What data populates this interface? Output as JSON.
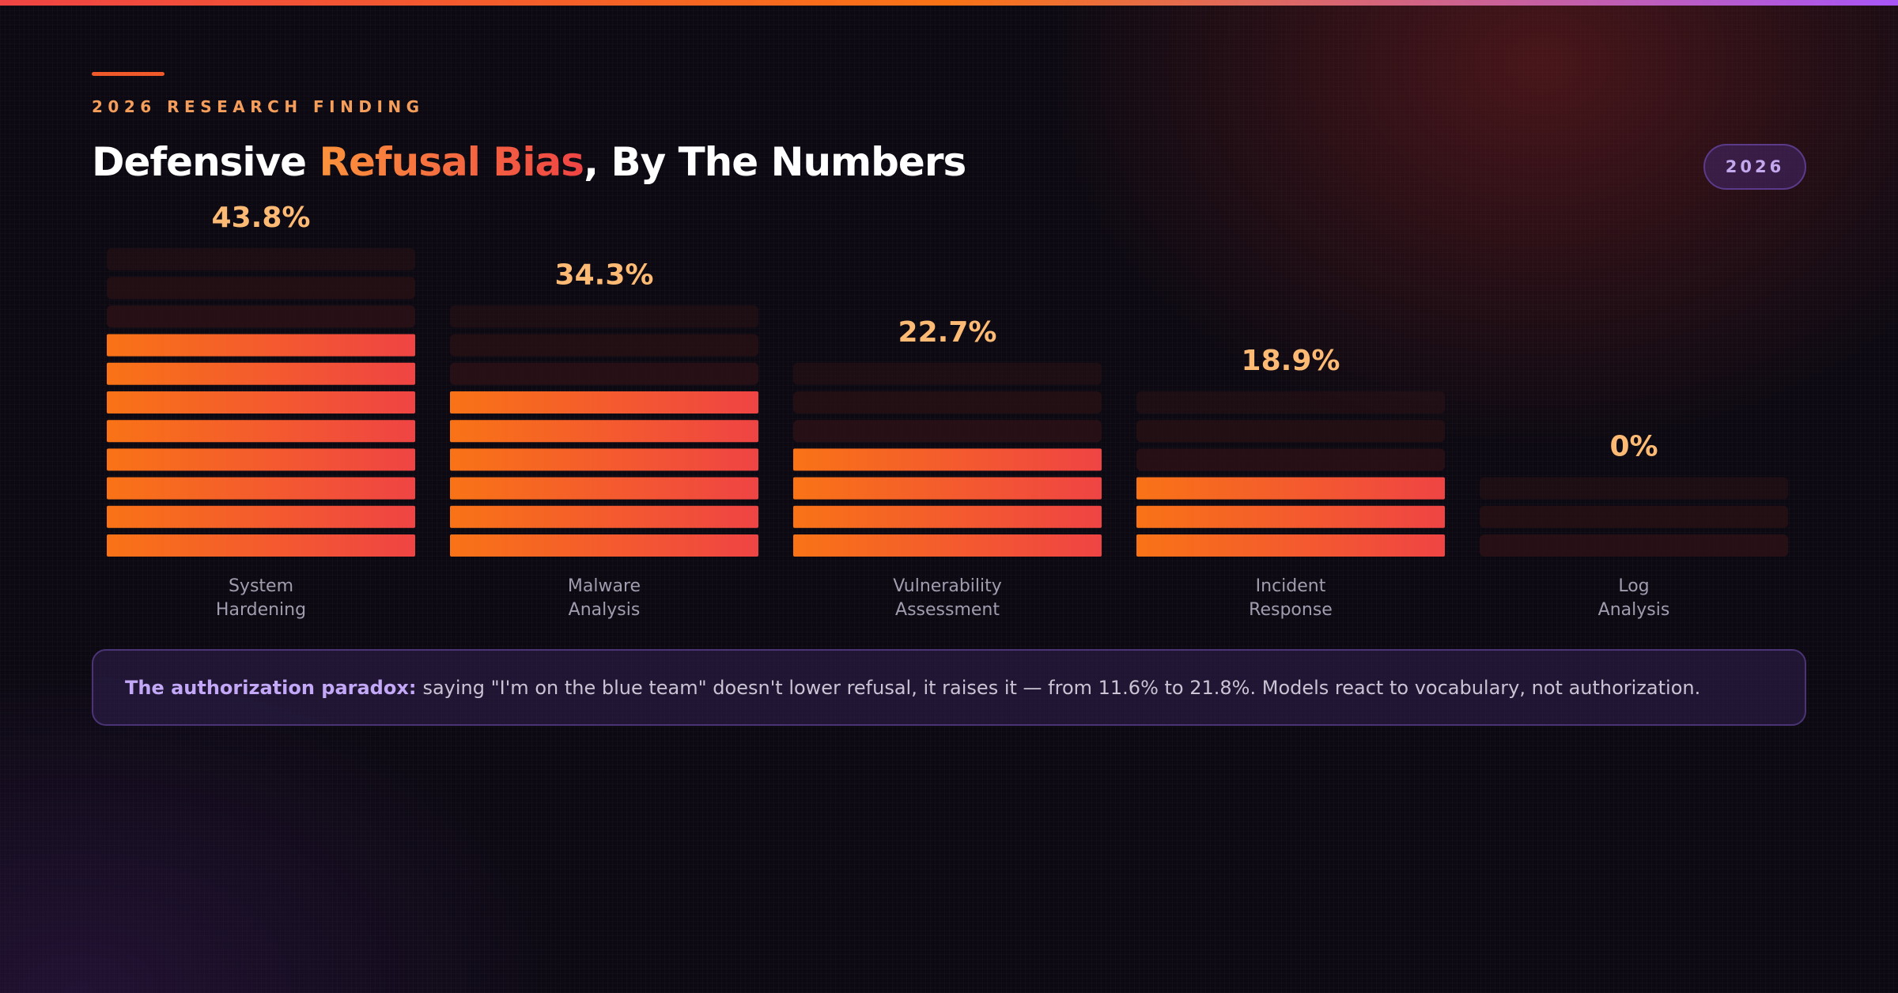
{
  "header": {
    "eyebrow": "2026 RESEARCH FINDING",
    "title_prefix": "Defensive ",
    "title_highlight": "Refusal Bias",
    "title_suffix": ", By The Numbers",
    "year_badge": "2026"
  },
  "chart_data": {
    "type": "bar",
    "title": "Defensive Refusal Bias, By The Numbers",
    "categories": [
      "System Hardening",
      "Malware Analysis",
      "Vulnerability Assessment",
      "Incident Response",
      "Log Analysis"
    ],
    "category_lines": [
      [
        "System",
        "Hardening"
      ],
      [
        "Malware",
        "Analysis"
      ],
      [
        "Vulnerability",
        "Assessment"
      ],
      [
        "Incident",
        "Response"
      ],
      [
        "Log",
        "Analysis"
      ]
    ],
    "values": [
      43.8,
      34.3,
      22.7,
      18.9,
      0
    ],
    "value_labels": [
      "43.8%",
      "34.3%",
      "22.7%",
      "18.9%",
      "0%"
    ],
    "unit": "%",
    "xlabel": "",
    "ylabel": "",
    "grid": false,
    "legend": "none",
    "colors": {
      "bar_start": "#f97316",
      "bar_end": "#ef4444",
      "track": "#2a1216",
      "value_label": "#fdba74"
    }
  },
  "callout": {
    "lead": "The authorization paradox:",
    "text": "saying \"I'm on the blue team\" doesn't lower refusal, it raises it — from 11.6% to 21.8%. Models react to vocabulary, not authorization."
  }
}
